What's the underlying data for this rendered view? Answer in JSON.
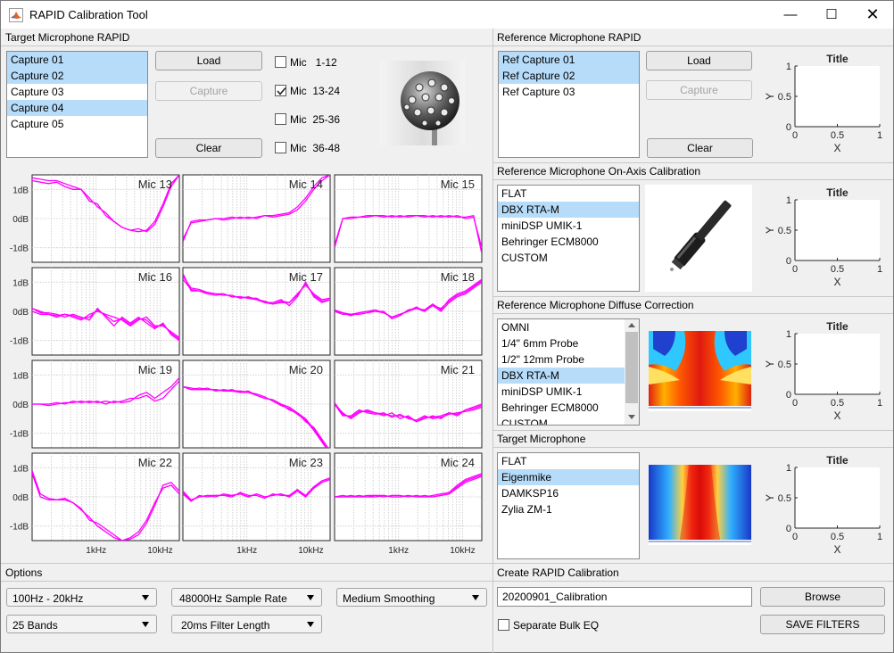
{
  "window": {
    "title": "RAPID Calibration Tool"
  },
  "target": {
    "title": "Target Microphone RAPID",
    "captures": [
      {
        "label": "Capture 01",
        "selected": true
      },
      {
        "label": "Capture 02",
        "selected": true
      },
      {
        "label": "Capture 03",
        "selected": false
      },
      {
        "label": "Capture 04",
        "selected": true
      },
      {
        "label": "Capture 05",
        "selected": false
      }
    ],
    "load_label": "Load",
    "capture_label": "Capture",
    "clear_label": "Clear",
    "mic_groups": [
      {
        "label": "Mic   1-12",
        "checked": false
      },
      {
        "label": "Mic  13-24",
        "checked": true
      },
      {
        "label": "Mic  25-36",
        "checked": false
      },
      {
        "label": "Mic  36-48",
        "checked": false
      }
    ]
  },
  "grid": {
    "ytick_labels": [
      "1dB",
      "0dB",
      "-1dB"
    ],
    "xtick_labels": [
      "1kHz",
      "10kHz"
    ],
    "line_color": "#ff00ff"
  },
  "chart_data": [
    {
      "type": "line",
      "title": "Mic 13",
      "y_range_db": [
        -1.5,
        1.5
      ],
      "x_scale": "log",
      "series": [
        {
          "values": [
            1.3,
            1.25,
            1.2,
            1.25,
            1.1,
            1.0,
            1.0,
            0.6,
            0.5,
            0.1,
            -0.1,
            -0.3,
            -0.4,
            -0.45,
            -0.4,
            -0.1,
            0.5,
            1.2,
            1.5
          ]
        },
        {
          "values": [
            1.4,
            1.35,
            1.3,
            1.3,
            1.2,
            1.1,
            1.0,
            0.7,
            0.4,
            0.2,
            -0.1,
            -0.3,
            -0.4,
            -0.35,
            -0.45,
            -0.2,
            0.4,
            1.1,
            1.5
          ]
        }
      ]
    },
    {
      "type": "line",
      "title": "Mic 14",
      "y_range_db": [
        -1.5,
        1.5
      ],
      "x_scale": "log",
      "series": [
        {
          "values": [
            -0.8,
            -0.1,
            -0.05,
            -0.05,
            0.0,
            -0.05,
            0.0,
            0.05,
            0.0,
            0.05,
            0.1,
            0.05,
            0.1,
            0.15,
            0.3,
            0.6,
            1.0,
            1.3,
            1.5
          ]
        },
        {
          "values": [
            -0.7,
            -0.15,
            -0.1,
            -0.05,
            0.0,
            0.0,
            0.05,
            0.0,
            0.05,
            0.0,
            0.1,
            0.1,
            0.15,
            0.2,
            0.4,
            0.7,
            1.1,
            1.4,
            1.5
          ]
        }
      ]
    },
    {
      "type": "line",
      "title": "Mic 15",
      "y_range_db": [
        -1.5,
        1.5
      ],
      "x_scale": "log",
      "series": [
        {
          "values": [
            -1.0,
            0.0,
            0.05,
            0.05,
            0.1,
            0.1,
            0.05,
            0.1,
            0.05,
            0.1,
            0.1,
            0.05,
            0.1,
            0.05,
            0.1,
            0.05,
            0.05,
            0.1,
            -1.2
          ]
        },
        {
          "values": [
            -0.9,
            0.0,
            0.0,
            0.05,
            0.05,
            0.1,
            0.1,
            0.05,
            0.1,
            0.05,
            0.1,
            0.1,
            0.05,
            0.1,
            0.05,
            0.1,
            0.0,
            0.05,
            -1.0
          ]
        }
      ]
    },
    {
      "type": "line",
      "title": "Mic 16",
      "y_range_db": [
        -1.5,
        1.5
      ],
      "x_scale": "log",
      "series": [
        {
          "values": [
            0.0,
            -0.1,
            -0.1,
            -0.2,
            -0.1,
            -0.2,
            -0.3,
            -0.1,
            0.0,
            -0.1,
            -0.2,
            -0.3,
            -0.5,
            -0.3,
            -0.2,
            -0.5,
            -0.5,
            -0.7,
            -0.9
          ]
        },
        {
          "values": [
            0.1,
            -0.05,
            -0.05,
            -0.1,
            -0.2,
            -0.1,
            -0.2,
            -0.3,
            0.1,
            -0.2,
            -0.5,
            -0.2,
            -0.4,
            -0.2,
            -0.4,
            -0.6,
            -0.4,
            -0.8,
            -1.0
          ]
        },
        {
          "values": [
            0.1,
            0.0,
            -0.1,
            -0.15,
            -0.1,
            -0.15,
            -0.25,
            -0.2,
            0.05,
            -0.15,
            -0.35,
            -0.25,
            -0.45,
            -0.25,
            -0.3,
            -0.55,
            -0.45,
            -0.75,
            -0.95
          ]
        }
      ]
    },
    {
      "type": "line",
      "title": "Mic 17",
      "y_range_db": [
        -1.5,
        1.5
      ],
      "x_scale": "log",
      "series": [
        {
          "values": [
            1.3,
            0.7,
            0.7,
            0.6,
            0.55,
            0.6,
            0.5,
            0.5,
            0.45,
            0.45,
            0.3,
            0.3,
            0.4,
            0.2,
            0.5,
            1.0,
            0.5,
            0.3,
            0.4
          ]
        },
        {
          "values": [
            1.2,
            0.8,
            0.75,
            0.65,
            0.6,
            0.55,
            0.55,
            0.45,
            0.5,
            0.4,
            0.35,
            0.25,
            0.35,
            0.3,
            0.6,
            0.9,
            0.6,
            0.4,
            0.45
          ]
        },
        {
          "values": [
            1.1,
            0.75,
            0.7,
            0.65,
            0.6,
            0.6,
            0.5,
            0.5,
            0.45,
            0.4,
            0.3,
            0.25,
            0.3,
            0.3,
            0.55,
            0.95,
            0.55,
            0.35,
            0.4
          ]
        }
      ]
    },
    {
      "type": "line",
      "title": "Mic 18",
      "y_range_db": [
        -1.5,
        1.5
      ],
      "x_scale": "log",
      "series": [
        {
          "values": [
            0.0,
            -0.1,
            -0.1,
            -0.05,
            0.0,
            0.0,
            -0.05,
            -0.2,
            -0.1,
            0.0,
            0.1,
            0.0,
            0.2,
            0.0,
            0.3,
            0.5,
            0.6,
            0.8,
            1.0
          ]
        },
        {
          "values": [
            0.0,
            -0.05,
            -0.1,
            -0.1,
            -0.05,
            0.0,
            0.0,
            -0.25,
            -0.15,
            0.05,
            0.1,
            0.05,
            0.25,
            0.05,
            0.4,
            0.6,
            0.7,
            0.9,
            1.1
          ]
        },
        {
          "values": [
            0.05,
            -0.05,
            -0.15,
            -0.05,
            0.0,
            0.05,
            -0.05,
            -0.2,
            -0.1,
            0.0,
            0.15,
            0.0,
            0.2,
            0.1,
            0.35,
            0.55,
            0.65,
            0.85,
            1.05
          ]
        }
      ]
    },
    {
      "type": "line",
      "title": "Mic 19",
      "y_range_db": [
        -1.5,
        1.5
      ],
      "x_scale": "log",
      "series": [
        {
          "values": [
            0.0,
            0.0,
            0.0,
            0.05,
            0.0,
            0.1,
            0.05,
            0.1,
            0.05,
            0.1,
            0.05,
            0.1,
            0.2,
            0.2,
            0.3,
            0.1,
            0.2,
            0.5,
            0.8
          ]
        },
        {
          "values": [
            0.0,
            0.0,
            -0.05,
            0.0,
            0.05,
            0.05,
            0.1,
            0.05,
            0.1,
            0.0,
            0.1,
            0.05,
            0.1,
            0.3,
            0.4,
            0.2,
            0.4,
            0.6,
            0.9
          ]
        }
      ]
    },
    {
      "type": "line",
      "title": "Mic 20",
      "y_range_db": [
        -1.5,
        1.5
      ],
      "x_scale": "log",
      "series": [
        {
          "values": [
            0.6,
            0.5,
            0.55,
            0.5,
            0.5,
            0.45,
            0.5,
            0.4,
            0.45,
            0.3,
            0.2,
            0.15,
            0.0,
            -0.2,
            -0.3,
            -0.6,
            -0.8,
            -1.2,
            -1.6
          ]
        },
        {
          "values": [
            0.6,
            0.55,
            0.5,
            0.55,
            0.45,
            0.5,
            0.45,
            0.45,
            0.4,
            0.35,
            0.25,
            0.1,
            -0.05,
            -0.15,
            -0.35,
            -0.55,
            -0.9,
            -1.3,
            -1.7
          ]
        },
        {
          "values": [
            0.6,
            0.5,
            0.5,
            0.5,
            0.5,
            0.45,
            0.45,
            0.4,
            0.4,
            0.3,
            0.2,
            0.15,
            0.0,
            -0.1,
            -0.3,
            -0.5,
            -0.85,
            -1.25,
            -1.7
          ]
        }
      ]
    },
    {
      "type": "line",
      "title": "Mic 21",
      "y_range_db": [
        -1.5,
        1.5
      ],
      "x_scale": "log",
      "series": [
        {
          "values": [
            0.0,
            -0.3,
            -0.5,
            -0.3,
            -0.2,
            -0.3,
            -0.4,
            -0.3,
            -0.5,
            -0.4,
            -0.6,
            -0.5,
            -0.4,
            -0.5,
            -0.3,
            -0.4,
            -0.2,
            -0.1,
            0.0
          ]
        },
        {
          "values": [
            0.0,
            -0.4,
            -0.4,
            -0.2,
            -0.3,
            -0.35,
            -0.3,
            -0.45,
            -0.35,
            -0.5,
            -0.55,
            -0.4,
            -0.5,
            -0.45,
            -0.35,
            -0.3,
            -0.25,
            -0.2,
            -0.1
          ]
        },
        {
          "values": [
            0.05,
            -0.35,
            -0.45,
            -0.25,
            -0.25,
            -0.3,
            -0.35,
            -0.4,
            -0.4,
            -0.45,
            -0.6,
            -0.45,
            -0.45,
            -0.4,
            -0.3,
            -0.35,
            -0.2,
            -0.15,
            -0.05
          ]
        }
      ]
    },
    {
      "type": "line",
      "title": "Mic 22",
      "y_range_db": [
        -1.5,
        1.5
      ],
      "x_scale": "log",
      "series": [
        {
          "values": [
            0.8,
            0.0,
            -0.1,
            -0.1,
            -0.05,
            -0.2,
            -0.4,
            -0.8,
            -0.9,
            -1.1,
            -1.3,
            -1.5,
            -1.45,
            -1.3,
            -0.9,
            -0.3,
            0.4,
            0.5,
            0.2
          ]
        },
        {
          "values": [
            0.9,
            0.1,
            -0.05,
            -0.1,
            -0.1,
            -0.2,
            -0.45,
            -0.7,
            -1.0,
            -1.2,
            -1.4,
            -1.5,
            -1.4,
            -1.2,
            -0.8,
            -0.2,
            0.3,
            0.4,
            0.1
          ]
        }
      ]
    },
    {
      "type": "line",
      "title": "Mic 23",
      "y_range_db": [
        -1.5,
        1.5
      ],
      "x_scale": "log",
      "series": [
        {
          "values": [
            0.2,
            -0.1,
            0.0,
            0.05,
            0.0,
            0.1,
            0.05,
            0.1,
            0.0,
            0.1,
            0.0,
            0.05,
            0.1,
            0.0,
            0.2,
            0.0,
            0.3,
            0.5,
            0.6
          ]
        },
        {
          "values": [
            0.1,
            -0.15,
            0.05,
            0.0,
            0.05,
            0.05,
            0.0,
            0.15,
            0.05,
            0.05,
            -0.05,
            0.1,
            0.05,
            0.05,
            0.25,
            0.05,
            0.35,
            0.55,
            0.65
          ]
        },
        {
          "values": [
            0.15,
            -0.1,
            0.0,
            0.05,
            0.05,
            0.05,
            0.05,
            0.1,
            0.0,
            0.1,
            0.0,
            0.05,
            0.1,
            0.0,
            0.25,
            0.0,
            0.3,
            0.5,
            0.6
          ]
        }
      ]
    },
    {
      "type": "line",
      "title": "Mic 24",
      "y_range_db": [
        -1.5,
        1.5
      ],
      "x_scale": "log",
      "series": [
        {
          "values": [
            0.0,
            0.05,
            0.0,
            0.05,
            0.0,
            0.0,
            0.05,
            0.0,
            0.0,
            0.05,
            0.0,
            0.0,
            0.0,
            0.05,
            0.1,
            0.3,
            0.5,
            0.6,
            0.7
          ]
        },
        {
          "values": [
            0.0,
            0.0,
            0.05,
            0.0,
            0.05,
            0.05,
            0.0,
            0.05,
            0.05,
            0.0,
            0.05,
            0.0,
            0.05,
            0.1,
            0.15,
            0.4,
            0.6,
            0.7,
            0.8
          ]
        },
        {
          "values": [
            0.0,
            0.0,
            0.0,
            0.0,
            0.0,
            0.05,
            0.05,
            0.0,
            0.0,
            0.05,
            0.0,
            0.05,
            0.0,
            0.05,
            0.1,
            0.35,
            0.55,
            0.65,
            0.75
          ]
        }
      ]
    },
    {
      "type": "line",
      "title": "Title",
      "xlabel": "X",
      "ylabel": "Y",
      "xlim": [
        0,
        1
      ],
      "ylim": [
        0,
        1
      ],
      "xticks": [
        "0",
        "0.5",
        "1"
      ],
      "yticks": [
        "0",
        "0.5",
        "1"
      ],
      "series": []
    },
    {
      "type": "line",
      "title": "Title",
      "xlabel": "X",
      "ylabel": "Y",
      "xlim": [
        0,
        1
      ],
      "ylim": [
        0,
        1
      ],
      "xticks": [
        "0",
        "0.5",
        "1"
      ],
      "yticks": [
        "0",
        "0.5",
        "1"
      ],
      "series": []
    },
    {
      "type": "line",
      "title": "Title",
      "xlabel": "X",
      "ylabel": "Y",
      "xlim": [
        0,
        1
      ],
      "ylim": [
        0,
        1
      ],
      "xticks": [
        "0",
        "0.5",
        "1"
      ],
      "yticks": [
        "0",
        "0.5",
        "1"
      ],
      "series": []
    },
    {
      "type": "line",
      "title": "Title",
      "xlabel": "X",
      "ylabel": "Y",
      "xlim": [
        0,
        1
      ],
      "ylim": [
        0,
        1
      ],
      "xticks": [
        "0",
        "0.5",
        "1"
      ],
      "yticks": [
        "0",
        "0.5",
        "1"
      ],
      "series": []
    }
  ],
  "reference": {
    "title": "Reference Microphone RAPID",
    "captures": [
      {
        "label": "Ref Capture 01",
        "selected": true
      },
      {
        "label": "Ref Capture 02",
        "selected": true
      },
      {
        "label": "Ref Capture 03",
        "selected": false
      }
    ],
    "load_label": "Load",
    "capture_label": "Capture",
    "clear_label": "Clear"
  },
  "onaxis": {
    "title": "Reference Microphone On-Axis Calibration",
    "items": [
      {
        "label": "FLAT",
        "selected": false
      },
      {
        "label": "DBX RTA-M",
        "selected": true
      },
      {
        "label": "miniDSP UMIK-1",
        "selected": false
      },
      {
        "label": "Behringer ECM8000",
        "selected": false
      },
      {
        "label": "CUSTOM",
        "selected": false
      }
    ]
  },
  "diffuse": {
    "title": "Reference Microphone Diffuse Correction",
    "items": [
      {
        "label": "OMNI",
        "selected": false
      },
      {
        "label": "1/4\" 6mm Probe",
        "selected": false
      },
      {
        "label": "1/2\" 12mm Probe",
        "selected": false
      },
      {
        "label": "DBX RTA-M",
        "selected": true
      },
      {
        "label": "miniDSP UMIK-1",
        "selected": false
      },
      {
        "label": "Behringer ECM8000",
        "selected": false
      },
      {
        "label": "CUSTOM",
        "selected": false
      }
    ]
  },
  "targetmic": {
    "title": "Target Microphone",
    "items": [
      {
        "label": "FLAT",
        "selected": false
      },
      {
        "label": "Eigenmike",
        "selected": true
      },
      {
        "label": "DAMKSP16",
        "selected": false
      },
      {
        "label": "Zylia ZM-1",
        "selected": false
      }
    ]
  },
  "options": {
    "title": "Options",
    "freq_range": "100Hz - 20kHz",
    "sample_rate": "48000Hz Sample Rate",
    "smoothing": "Medium Smoothing",
    "bands": "25 Bands",
    "filter_length": "20ms Filter Length"
  },
  "create": {
    "title": "Create RAPID Calibration",
    "name_value": "20200901_Calibration",
    "browse_label": "Browse",
    "save_label": "SAVE FILTERS",
    "separate_label": "Separate Bulk EQ",
    "separate_checked": false
  }
}
